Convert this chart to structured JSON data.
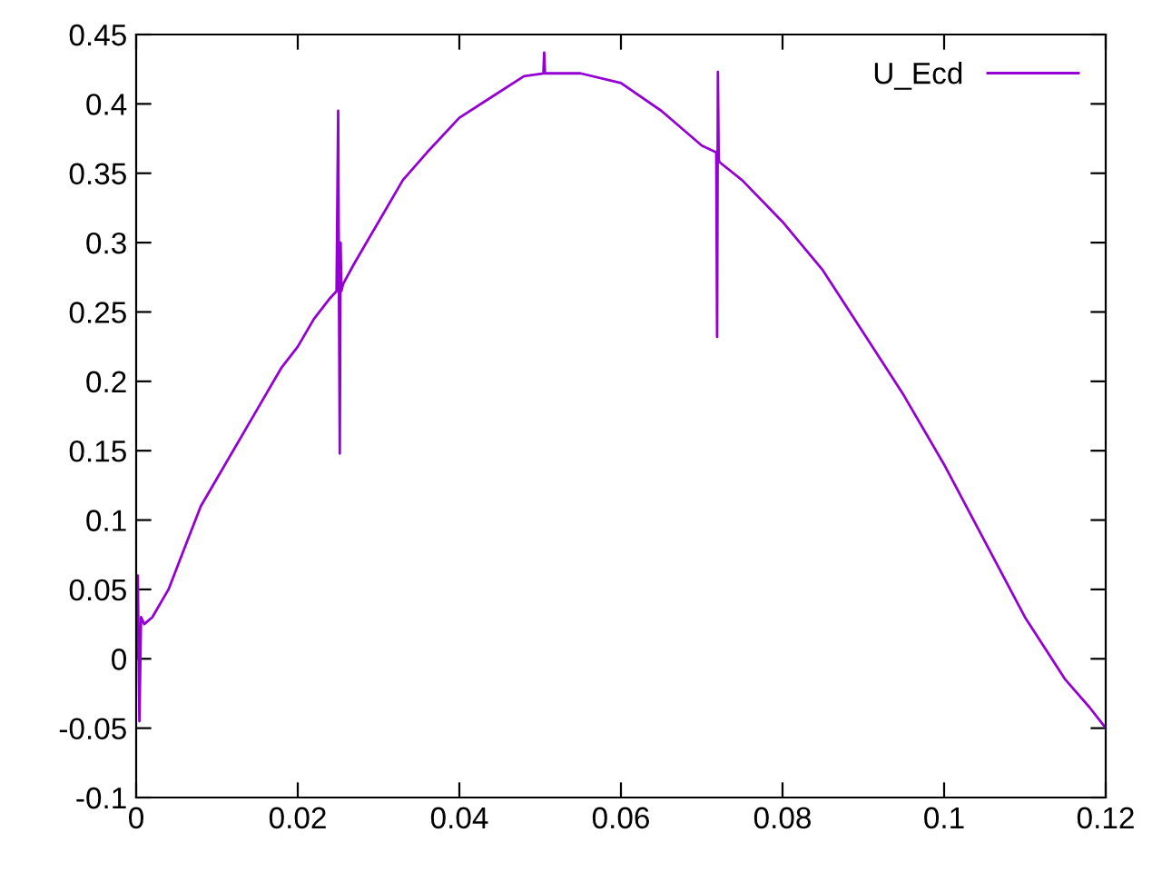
{
  "chart_data": {
    "type": "line",
    "legend": "top right",
    "grid": false,
    "marker": "none",
    "line_style": "solid",
    "xlim": [
      0,
      0.12
    ],
    "ylim": [
      -0.1,
      0.45
    ],
    "xticks": [
      0,
      0.02,
      0.04,
      0.06,
      0.08,
      0.1,
      0.12
    ],
    "yticks": [
      -0.1,
      -0.05,
      0,
      0.05,
      0.1,
      0.15,
      0.2,
      0.25,
      0.3,
      0.35,
      0.4,
      0.45
    ],
    "series": [
      {
        "name": "U_Ecd",
        "color": "#9400d3",
        "x": [
          0,
          0.0002,
          0.0004,
          0.0006,
          0.001,
          0.002,
          0.004,
          0.006,
          0.008,
          0.01,
          0.012,
          0.015,
          0.018,
          0.02,
          0.022,
          0.024,
          0.0248,
          0.025,
          0.0251,
          0.0252,
          0.0253,
          0.0254,
          0.0256,
          0.027,
          0.03,
          0.033,
          0.036,
          0.04,
          0.044,
          0.048,
          0.0504,
          0.0505,
          0.0506,
          0.055,
          0.06,
          0.065,
          0.07,
          0.0718,
          0.0719,
          0.072,
          0.0721,
          0.0722,
          0.075,
          0.08,
          0.085,
          0.09,
          0.095,
          0.1,
          0.105,
          0.11,
          0.115,
          0.118,
          0.12
        ],
        "values": [
          0.0,
          0.06,
          -0.045,
          0.03,
          0.025,
          0.03,
          0.05,
          0.08,
          0.11,
          0.13,
          0.15,
          0.18,
          0.21,
          0.225,
          0.245,
          0.26,
          0.265,
          0.395,
          0.265,
          0.148,
          0.3,
          0.265,
          0.27,
          0.285,
          0.315,
          0.345,
          0.365,
          0.39,
          0.405,
          0.42,
          0.422,
          0.437,
          0.422,
          0.422,
          0.415,
          0.395,
          0.37,
          0.365,
          0.232,
          0.423,
          0.36,
          0.358,
          0.345,
          0.315,
          0.28,
          0.235,
          0.19,
          0.14,
          0.085,
          0.03,
          -0.015,
          -0.035,
          -0.05
        ]
      }
    ]
  }
}
